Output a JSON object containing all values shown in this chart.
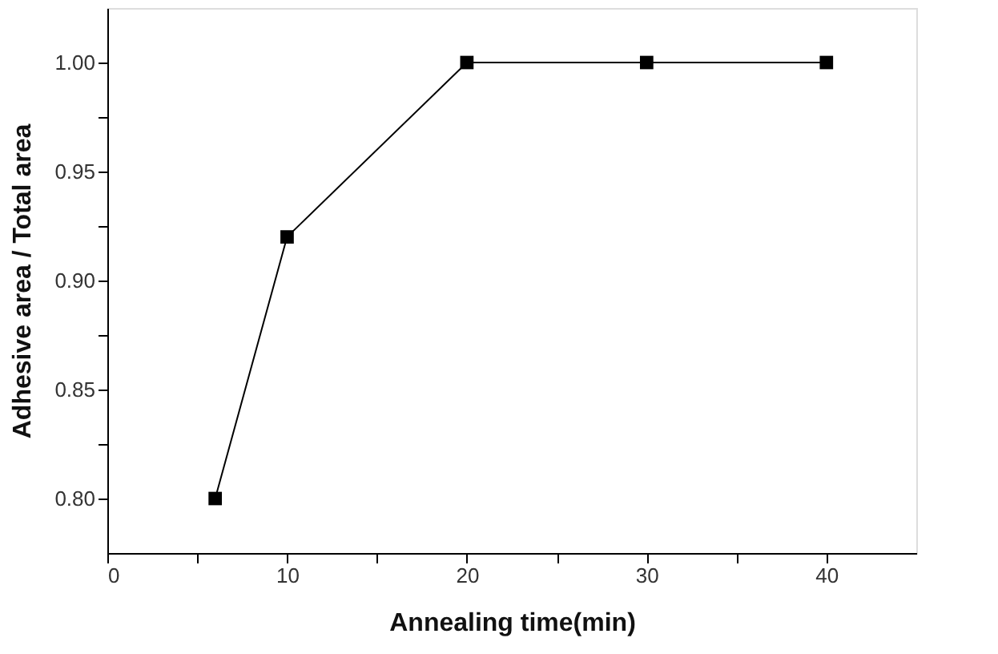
{
  "chart_data": {
    "type": "line",
    "xlabel": "Annealing time(min)",
    "ylabel": "Adhesive area / Total area",
    "x": [
      6,
      10,
      20,
      30,
      40
    ],
    "series": [
      {
        "color": "#000000",
        "values": [
          0.8,
          0.92,
          1.0,
          1.0,
          1.0
        ]
      }
    ],
    "xlim": [
      0,
      45
    ],
    "xticks": [
      0,
      {
        "value": 5,
        "label": null
      },
      10,
      {
        "value": 15,
        "label": null
      },
      20,
      {
        "value": 25,
        "label": null
      },
      30,
      {
        "value": 35,
        "label": null
      },
      40
    ],
    "ylim": [
      0.775,
      1.025
    ],
    "yticks": [
      {
        "value": 0.8,
        "label": "0.80"
      },
      {
        "value": 0.825,
        "label": null
      },
      {
        "value": 0.85,
        "label": "0.85"
      },
      {
        "value": 0.875,
        "label": null
      },
      {
        "value": 0.9,
        "label": "0.90"
      },
      {
        "value": 0.925,
        "label": null
      },
      {
        "value": 0.95,
        "label": "0.95"
      },
      {
        "value": 0.975,
        "label": null
      },
      {
        "value": 1.0,
        "label": "1.00"
      }
    ],
    "marker": "square",
    "line_style": "solid",
    "grid": false
  }
}
